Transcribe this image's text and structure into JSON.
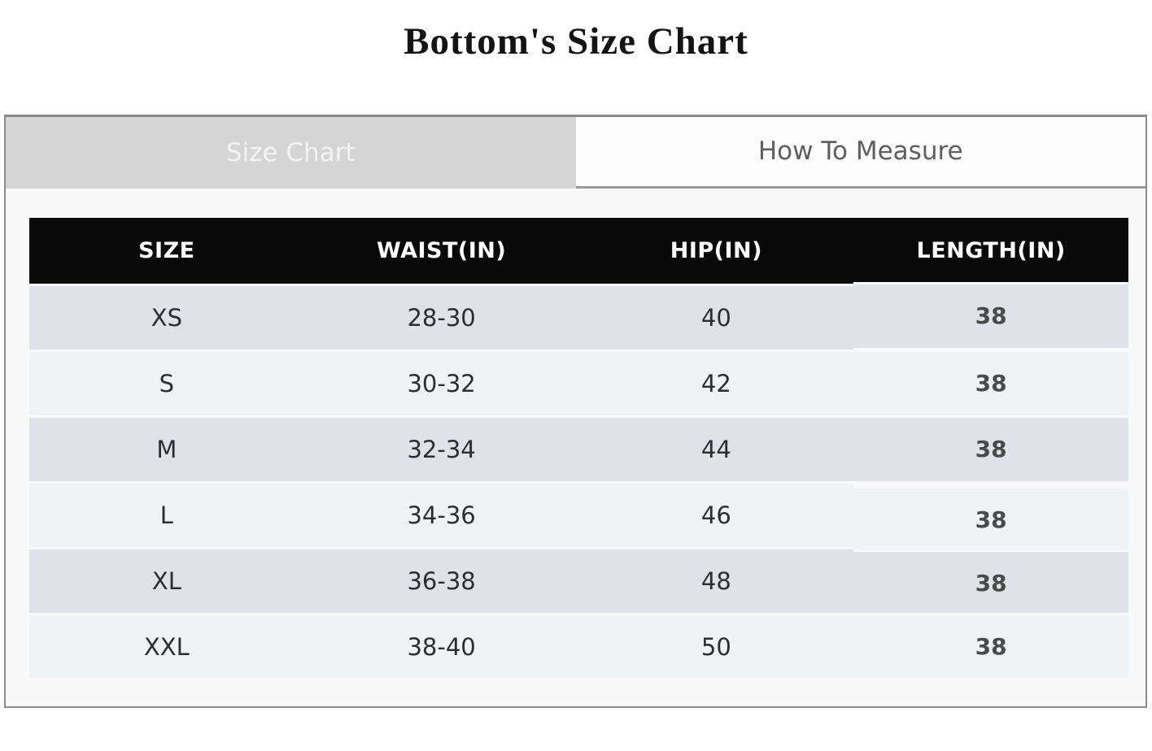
{
  "page": {
    "title": "Bottom's Size Chart"
  },
  "tabs": {
    "size_chart": {
      "label": "Size Chart",
      "active": true
    },
    "how_to_measure": {
      "label": "How To Measure",
      "active": false
    }
  },
  "chart_data": {
    "type": "table",
    "title": "Bottom's Size Chart",
    "columns": [
      "SIZE",
      "WAIST(IN)",
      "HIP(IN)",
      "LENGTH(IN)"
    ],
    "rows": [
      {
        "size": "XS",
        "waist": "28-30",
        "hip": "40",
        "length": "38"
      },
      {
        "size": "S",
        "waist": "30-32",
        "hip": "42",
        "length": "38"
      },
      {
        "size": "M",
        "waist": "32-34",
        "hip": "44",
        "length": "38"
      },
      {
        "size": "L",
        "waist": "34-36",
        "hip": "46",
        "length": "38"
      },
      {
        "size": "XL",
        "waist": "36-38",
        "hip": "48",
        "length": "38"
      },
      {
        "size": "XXL",
        "waist": "38-40",
        "hip": "50",
        "length": "38"
      }
    ]
  },
  "colors": {
    "header_bg": "#0a0a0a",
    "header_text": "#ffffff",
    "row_dark": "#dfe2e9",
    "row_light": "#f0f2f6",
    "tab_active_bg": "#d5d5d5",
    "tab_active_text": "#f3f3f3",
    "tab_inactive_bg": "#fdfdfd",
    "tab_inactive_text": "#5e5e5e",
    "container_border": "#8a8a8a",
    "length_value_text": "#4a4a4a"
  }
}
